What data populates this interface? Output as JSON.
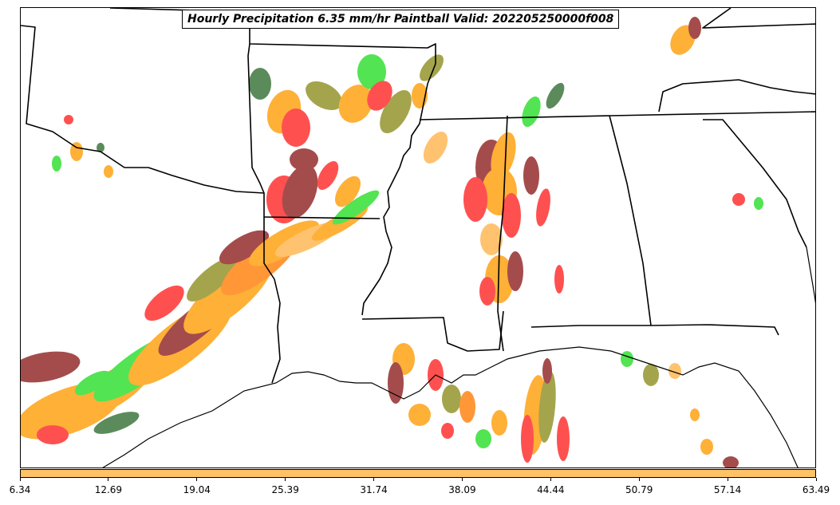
{
  "title": "Hourly Precipitation 6.35 mm/hr Paintball Valid: 202205250000f008",
  "colorbar": {
    "color": "#ffc266",
    "ticks": [
      "6.34",
      "12.69",
      "19.04",
      "25.39",
      "31.74",
      "38.09",
      "44.44",
      "50.79",
      "57.14",
      "63.49"
    ]
  },
  "colors": {
    "red": "#ff2020",
    "dark_red": "#8b1a1a",
    "orange": "#ff9a00",
    "light_orange": "#ffb347",
    "green": "#22dd22",
    "dark_green": "#2e6b2e",
    "olive": "#8b8b1a",
    "dark_gray": "#404040",
    "boundary": "#000000"
  },
  "legend": "none",
  "gridlines": false
}
